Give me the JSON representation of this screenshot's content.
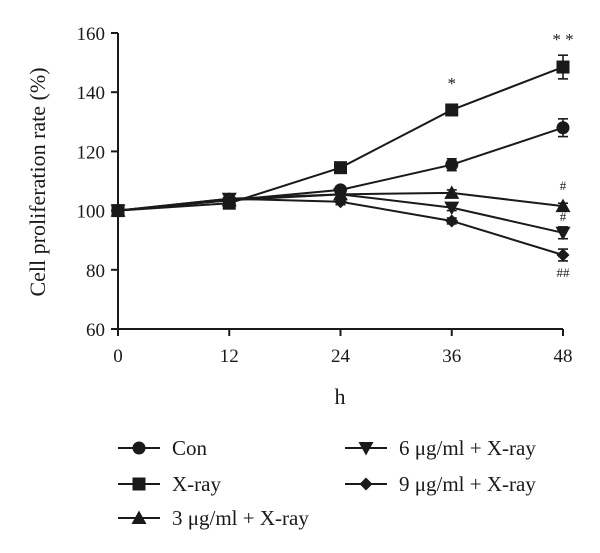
{
  "chart_data": {
    "type": "line",
    "xlabel": "h",
    "ylabel": "Cell proliferation rate (%)",
    "x": [
      0,
      12,
      24,
      36,
      48
    ],
    "xticks": [
      "0",
      "12",
      "24",
      "36",
      "48"
    ],
    "yticks": [
      "60",
      "80",
      "100",
      "120",
      "140",
      "160"
    ],
    "xlim": [
      0,
      48
    ],
    "ylim": [
      60,
      160
    ],
    "grid": false,
    "legend_position": "bottom",
    "series": [
      {
        "name": "Con",
        "marker": "circle",
        "values": [
          100,
          103.5,
          107,
          115.5,
          128
        ],
        "errors": [
          0,
          1,
          1,
          2,
          3
        ]
      },
      {
        "name": "X-ray",
        "marker": "square",
        "values": [
          100,
          102.5,
          114.5,
          134,
          148.5
        ],
        "errors": [
          0,
          1,
          1,
          1,
          4
        ]
      },
      {
        "name": "3 μg/ml + X-ray",
        "marker": "triangle-up",
        "values": [
          100,
          103.5,
          105.5,
          106,
          101.5
        ],
        "errors": [
          0,
          1,
          1,
          1,
          1
        ]
      },
      {
        "name": "6 μg/ml + X-ray",
        "marker": "triangle-down",
        "values": [
          100,
          104,
          105.5,
          101,
          92.5
        ],
        "errors": [
          0,
          1,
          1,
          1,
          2
        ]
      },
      {
        "name": "9 μg/ml + X-ray",
        "marker": "diamond",
        "values": [
          100,
          104,
          103,
          96.5,
          85
        ],
        "errors": [
          0,
          1,
          1,
          1,
          2
        ]
      }
    ],
    "annotations": [
      {
        "text": "*",
        "x": 36,
        "y": 141
      },
      {
        "text": "* *",
        "x": 48,
        "y": 156
      },
      {
        "text": "#",
        "x": 48,
        "y": 107
      },
      {
        "text": "#",
        "x": 48,
        "y": 96.5
      },
      {
        "text": "##",
        "x": 48,
        "y": 77.5
      }
    ]
  }
}
